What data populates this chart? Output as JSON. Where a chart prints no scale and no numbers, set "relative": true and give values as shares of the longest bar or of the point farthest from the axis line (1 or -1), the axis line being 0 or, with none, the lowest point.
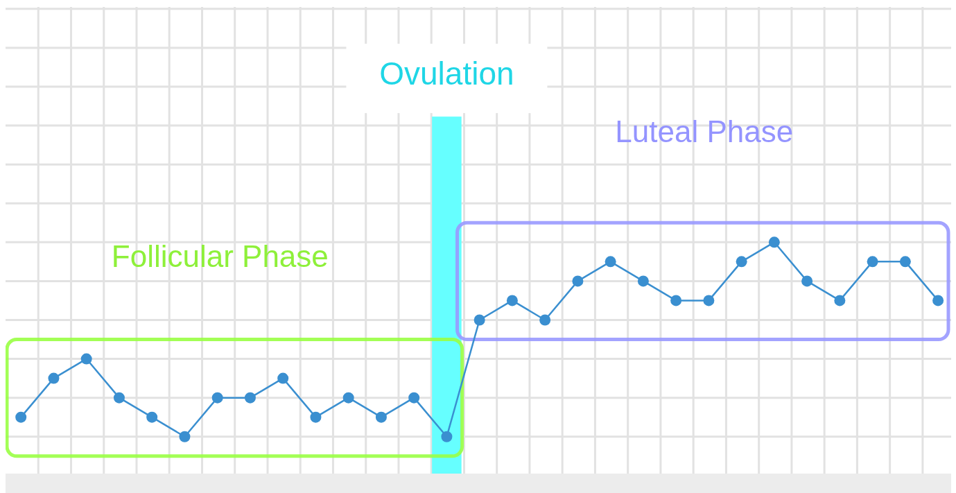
{
  "chart_data": {
    "type": "line",
    "relative": true,
    "categories": [
      null,
      null,
      null,
      null,
      null,
      null,
      null,
      null,
      null,
      null,
      null,
      null,
      null,
      null,
      null,
      null,
      null,
      null,
      null,
      null,
      null,
      null,
      null,
      null,
      null,
      null,
      null,
      null,
      null
    ],
    "grid": true,
    "marker": "circle",
    "line_style": "solid",
    "series": [
      {
        "color": "#3a8fd0",
        "values": [
          0.1,
          0.3,
          0.4,
          0.2,
          0.1,
          0,
          0.2,
          0.2,
          0.3,
          0.1,
          0.2,
          0.1,
          0.2,
          0,
          0.6,
          0.7,
          0.6,
          0.8,
          0.9,
          0.8,
          0.7,
          0.7,
          0.9,
          1,
          0.8,
          0.7,
          0.9,
          0.9,
          0.7
        ]
      }
    ],
    "annotations": [
      "Ovulation",
      "Follicular Phase",
      "Luteal Phase"
    ]
  }
}
